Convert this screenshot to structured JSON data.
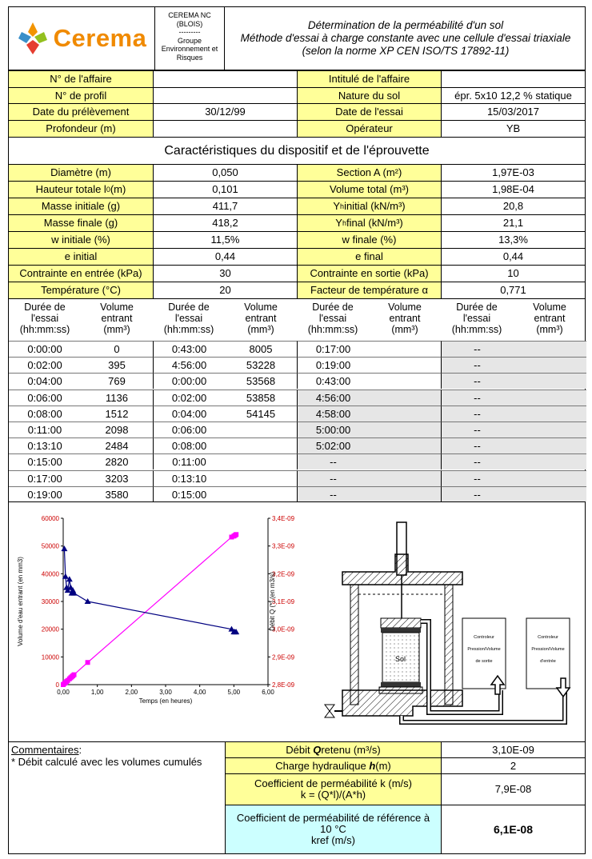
{
  "header": {
    "logo_text": "Cerema",
    "org_line1": "CEREMA NC",
    "org_line2": "(BLOIS)",
    "org_sep": "---------",
    "org_line3": "Groupe",
    "org_line4": "Environnement et",
    "org_line5": "Risques",
    "title_line1": "Détermination de la perméabilité d'un sol",
    "title_line2": "Méthode d'essai à charge constante avec une cellule d'essai triaxiale",
    "title_line3": "(selon la norme XP CEN ISO/TS 17892-11)"
  },
  "info": {
    "num_affaire_label": "N° de l'affaire",
    "num_affaire_value": "",
    "intitule_label": "Intitulé de l'affaire",
    "intitule_value": "",
    "num_profil_label": "N° de profil",
    "num_profil_value": "",
    "nature_label": "Nature du sol",
    "nature_value": "épr. 5x10 12,2 % statique",
    "date_prelev_label": "Date du prélèvement",
    "date_prelev_value": "30/12/99",
    "date_essai_label": "Date de l'essai",
    "date_essai_value": "15/03/2017",
    "profondeur_label": "Profondeur (m)",
    "profondeur_value": "",
    "operateur_label": "Opérateur",
    "operateur_value": "YB"
  },
  "section_title": "Caractéristiques du dispositif et de l'éprouvette",
  "specs": {
    "diametre_label": "Diamètre (m)",
    "diametre_value": "0,050",
    "section_label": "Section A (m²)",
    "section_value": "1,97E-03",
    "hauteur_label": "Hauteur totale l",
    "hauteur_sub": "0",
    "hauteur_unit": " (m)",
    "hauteur_value": "0,101",
    "volume_label": "Volume total (m³)",
    "volume_value": "1,98E-04",
    "masse_init_label": "Masse initiale (g)",
    "masse_init_value": "411,7",
    "yh_init_label": "Y",
    "yh_init_sub": "h",
    "yh_init_unit": " initial (kN/m³)",
    "yh_init_value": "20,8",
    "masse_fin_label": "Masse finale (g)",
    "masse_fin_value": "418,2",
    "yh_fin_label": "Y",
    "yh_fin_sub": "h",
    "yh_fin_unit": " final (kN/m³)",
    "yh_fin_value": "21,1",
    "w_init_label": "w initiale (%)",
    "w_init_value": "11,5%",
    "w_fin_label": "w finale (%)",
    "w_fin_value": "13,3%",
    "e_init_label": "e initial",
    "e_init_value": "0,44",
    "e_fin_label": "e final",
    "e_fin_value": "0,44",
    "c_entree_label": "Contrainte en entrée (kPa)",
    "c_entree_value": "30",
    "c_sortie_label": "Contrainte en sortie (kPa)",
    "c_sortie_value": "10",
    "temp_label": "Température (°C)",
    "temp_value": "20",
    "facteur_label": "Facteur de température α",
    "facteur_value": "0,771"
  },
  "table": {
    "h_duree": "Durée de l'essai (hh:mm:ss)",
    "h_volume": "Volume entrant (mm³)",
    "rows": [
      [
        "0:00:00",
        "0",
        "0:43:00",
        "8005",
        "0:17:00",
        "",
        "--",
        ""
      ],
      [
        "0:02:00",
        "395",
        "4:56:00",
        "53228",
        "0:19:00",
        "",
        "--",
        ""
      ],
      [
        "0:04:00",
        "769",
        "0:00:00",
        "53568",
        "0:43:00",
        "",
        "--",
        ""
      ],
      [
        "0:06:00",
        "1136",
        "0:02:00",
        "53858",
        "4:56:00",
        "",
        "--",
        ""
      ],
      [
        "0:08:00",
        "1512",
        "0:04:00",
        "54145",
        "4:58:00",
        "",
        "--",
        ""
      ],
      [
        "0:11:00",
        "2098",
        "0:06:00",
        "",
        "5:00:00",
        "",
        "--",
        ""
      ],
      [
        "0:13:10",
        "2484",
        "0:08:00",
        "",
        "5:02:00",
        "",
        "--",
        ""
      ],
      [
        "0:15:00",
        "2820",
        "0:11:00",
        "",
        "--",
        "",
        "--",
        ""
      ],
      [
        "0:17:00",
        "3203",
        "0:13:10",
        "",
        "--",
        "",
        "--",
        ""
      ],
      [
        "0:19:00",
        "3580",
        "0:15:00",
        "",
        "--",
        "",
        "--",
        ""
      ]
    ]
  },
  "chart_data": {
    "type": "scatter",
    "xlabel": "Temps (en heures)",
    "ylabel": "Volume d'eau entrant (en mm3)",
    "y2label": "Débit Q (*) (en m3/s)",
    "xlim": [
      0,
      6
    ],
    "ylim": [
      0,
      60000
    ],
    "y2lim": [
      2.8e-09,
      3.4e-09
    ],
    "x_ticks": [
      "0,00",
      "1,00",
      "2,00",
      "3,00",
      "4,00",
      "5,00",
      "6,00"
    ],
    "y_ticks": [
      "0",
      "10000",
      "20000",
      "30000",
      "40000",
      "50000",
      "60000"
    ],
    "y2_ticks": [
      "2,8E-09",
      "2,9E-09",
      "3,0E-09",
      "3,1E-09",
      "3,2E-09",
      "3,3E-09",
      "3,4E-09"
    ],
    "series": [
      {
        "name": "Volume entrant",
        "color": "#ff00ff",
        "axis": "left",
        "x": [
          0,
          0.033,
          0.067,
          0.1,
          0.133,
          0.183,
          0.219,
          0.25,
          0.283,
          0.317,
          0.717,
          4.933,
          5.0,
          5.033,
          5.067
        ],
        "y": [
          0,
          395,
          769,
          1136,
          1512,
          2098,
          2484,
          2820,
          3203,
          3580,
          8005,
          53228,
          53568,
          53858,
          54145
        ]
      },
      {
        "name": "Débit Q",
        "color": "#000080",
        "axis": "right",
        "x": [
          0.033,
          0.067,
          0.1,
          0.133,
          0.183,
          0.219,
          0.25,
          0.283,
          0.317,
          0.717,
          4.933,
          5.0,
          5.033,
          5.067
        ],
        "y": [
          3.29e-09,
          3.19e-09,
          3.15e-09,
          3.14e-09,
          3.18e-09,
          3.15e-09,
          3.13e-09,
          3.14e-09,
          3.13e-09,
          3.1e-09,
          3e-09,
          2.99e-09,
          2.99e-09,
          2.99e-09
        ]
      }
    ]
  },
  "diagram": {
    "sol_label": "Sol",
    "ctrl_sortie_l1": "Controleur",
    "ctrl_sortie_l2": "Pression/Volume",
    "ctrl_sortie_l3": "de sortie",
    "ctrl_entree_l1": "Controleur",
    "ctrl_entree_l2": "Pression/Volume",
    "ctrl_entree_l3": "d'entrée"
  },
  "results": {
    "commentaires_label": "Commentaires",
    "commentaires_colon": ":",
    "comment_text": "* Débit calculé avec les volumes cumulés",
    "debit_label_pre": "Débit ",
    "debit_label_q": "Q",
    "debit_label_post": " retenu (m³/s)",
    "debit_value": "3,10E-09",
    "charge_label_pre": "Charge hydraulique ",
    "charge_label_h": "h",
    "charge_label_post": " (m)",
    "charge_value": "2",
    "coef_label1": "Coefficient de perméabilité  k (m/s)",
    "coef_label2": "k = (Q*l)/(A*h)",
    "coef_value": "7,9E-08",
    "kref_label1": "Coefficient de perméabilité de référence à",
    "kref_label2": "10 °C",
    "kref_label3": "kref (m/s)",
    "kref_value": "6,1E-08"
  }
}
